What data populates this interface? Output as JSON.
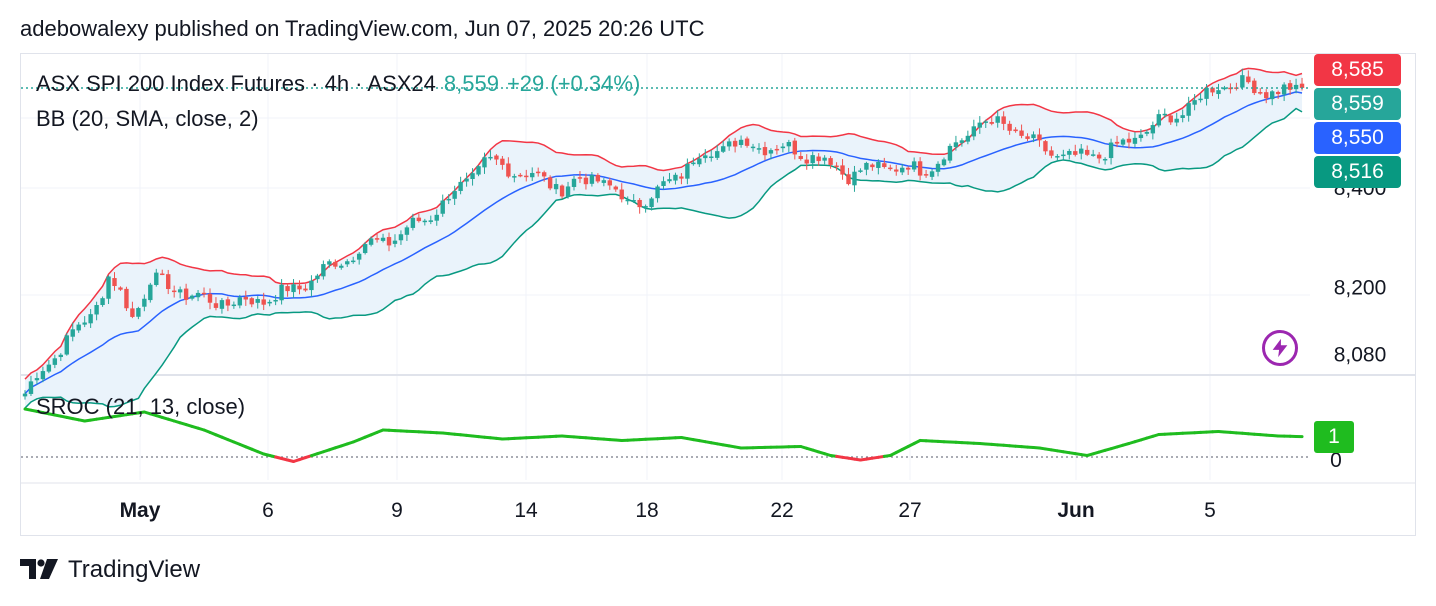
{
  "header": {
    "publisher_line": "adebowalexy published on TradingView.com, Jun 07, 2025 20:26 UTC"
  },
  "legend": {
    "symbol_line": "ASX SPI 200 Index Futures · 4h · ASX24",
    "last": "8,559",
    "change": "+29 (+0.34%)",
    "bb_label": "BB (20, SMA, close, 2)",
    "sroc_label": "SROC (21, 13, close)"
  },
  "price_tags": [
    {
      "label": "8,585",
      "color": "#f23645",
      "name": "bb-upper"
    },
    {
      "label": "8,559",
      "color": "#26a69a",
      "name": "last-price"
    },
    {
      "label": "8,550",
      "color": "#2962ff",
      "name": "bb-basis"
    },
    {
      "label": "8,516",
      "color": "#089981",
      "name": "bb-lower"
    }
  ],
  "indicator_tag": {
    "label": "1"
  },
  "footer": {
    "brand": "TradingView"
  },
  "colors": {
    "up": "#26a69a",
    "down": "#ef5350",
    "bb_upper": "#f23645",
    "bb_basis": "#2962ff",
    "bb_lower": "#089981",
    "band_fill": "#eaf3fb",
    "sroc_pos": "#1fbc1f",
    "sroc_neg": "#f23645"
  },
  "chart_data": [
    {
      "type": "candlestick",
      "title": "ASX SPI 200 Index Futures · 4h · ASX24",
      "y_ticks": [
        "8,080",
        "8,200"
      ],
      "y_axis_partial_label": "8,400",
      "x_ticks": [
        "May",
        "6",
        "9",
        "14",
        "18",
        "22",
        "27",
        "Jun",
        "5"
      ],
      "ylim": [
        8045,
        8620
      ],
      "last_price": 8559,
      "bollinger": {
        "upper": 8585,
        "basis": 8550,
        "lower": 8516
      },
      "series_path": [
        [
          0,
          8010
        ],
        [
          6,
          8095
        ],
        [
          11,
          8150
        ],
        [
          14,
          8220
        ],
        [
          18,
          8150
        ],
        [
          21,
          8215
        ],
        [
          26,
          8195
        ],
        [
          31,
          8175
        ],
        [
          38,
          8175
        ],
        [
          45,
          8195
        ],
        [
          50,
          8230
        ],
        [
          56,
          8270
        ],
        [
          63,
          8295
        ],
        [
          70,
          8350
        ],
        [
          77,
          8425
        ],
        [
          83,
          8410
        ],
        [
          90,
          8380
        ],
        [
          96,
          8400
        ],
        [
          101,
          8350
        ],
        [
          106,
          8370
        ],
        [
          112,
          8430
        ],
        [
          118,
          8460
        ],
        [
          125,
          8455
        ],
        [
          132,
          8440
        ],
        [
          138,
          8405
        ],
        [
          145,
          8420
        ],
        [
          150,
          8410
        ],
        [
          155,
          8445
        ],
        [
          160,
          8500
        ],
        [
          165,
          8488
        ],
        [
          170,
          8450
        ],
        [
          176,
          8430
        ],
        [
          183,
          8450
        ],
        [
          189,
          8490
        ],
        [
          196,
          8530
        ],
        [
          200,
          8568
        ],
        [
          205,
          8563
        ],
        [
          210,
          8550
        ],
        [
          214,
          8558
        ]
      ]
    },
    {
      "type": "line",
      "title": "SROC (21, 13, close)",
      "y_ticks": [
        "0"
      ],
      "last_value": 1,
      "path": [
        [
          0,
          1.6
        ],
        [
          10,
          1.2
        ],
        [
          20,
          1.5
        ],
        [
          30,
          0.9
        ],
        [
          40,
          0.1
        ],
        [
          45,
          -0.15
        ],
        [
          55,
          0.5
        ],
        [
          60,
          0.9
        ],
        [
          70,
          0.8
        ],
        [
          80,
          0.6
        ],
        [
          90,
          0.7
        ],
        [
          100,
          0.55
        ],
        [
          110,
          0.65
        ],
        [
          120,
          0.3
        ],
        [
          130,
          0.35
        ],
        [
          135,
          0.05
        ],
        [
          140,
          -0.1
        ],
        [
          145,
          0.05
        ],
        [
          150,
          0.55
        ],
        [
          160,
          0.45
        ],
        [
          170,
          0.3
        ],
        [
          178,
          0.05
        ],
        [
          185,
          0.45
        ],
        [
          190,
          0.75
        ],
        [
          200,
          0.85
        ],
        [
          210,
          0.7
        ],
        [
          214,
          0.68
        ]
      ]
    }
  ]
}
